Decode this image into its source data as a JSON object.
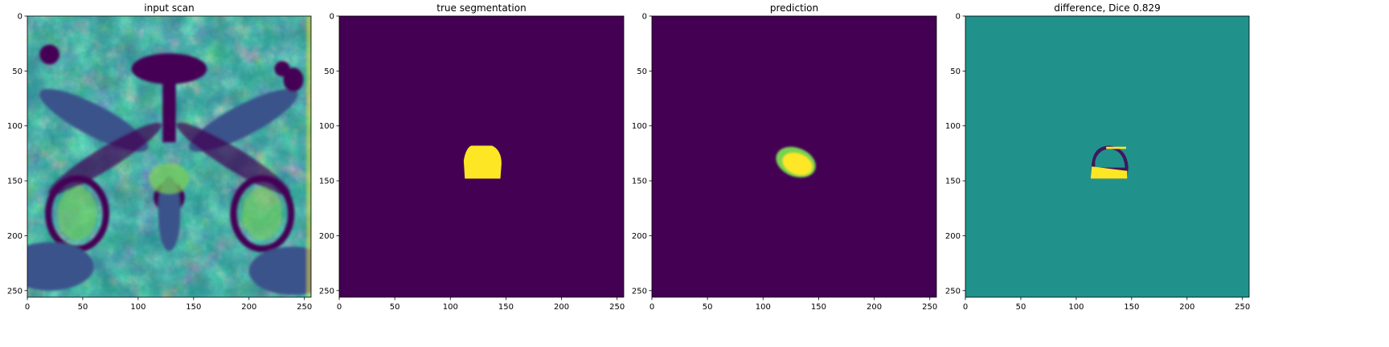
{
  "chart_data": [
    {
      "type": "heatmap",
      "title": "input scan",
      "colormap": "viridis",
      "content": "mri-scan",
      "xlim": [
        0,
        256
      ],
      "ylim": [
        0,
        256
      ],
      "xticks": [
        0,
        50,
        100,
        150,
        200,
        250
      ],
      "yticks": [
        0,
        50,
        100,
        150,
        200,
        250
      ],
      "grid": false
    },
    {
      "type": "heatmap",
      "title": "true segmentation",
      "colormap": "viridis",
      "content": "mask",
      "region": {
        "x_range": [
          112,
          146
        ],
        "y_range": [
          118,
          148
        ]
      },
      "xlim": [
        0,
        256
      ],
      "ylim": [
        0,
        256
      ],
      "xticks": [
        0,
        50,
        100,
        150,
        200,
        250
      ],
      "yticks": [
        0,
        50,
        100,
        150,
        200,
        250
      ],
      "grid": false
    },
    {
      "type": "heatmap",
      "title": "prediction",
      "colormap": "viridis",
      "content": "prediction",
      "region": {
        "x_range": [
          111,
          148
        ],
        "y_range": [
          120,
          146
        ]
      },
      "xlim": [
        0,
        256
      ],
      "ylim": [
        0,
        256
      ],
      "xticks": [
        0,
        50,
        100,
        150,
        200,
        250
      ],
      "yticks": [
        0,
        50,
        100,
        150,
        200,
        250
      ],
      "grid": false
    },
    {
      "type": "heatmap",
      "title": "difference, Dice 0.829",
      "colormap": "viridis",
      "content": "difference",
      "dice": 0.829,
      "xlim": [
        0,
        256
      ],
      "ylim": [
        0,
        256
      ],
      "xticks": [
        0,
        50,
        100,
        150,
        200,
        250
      ],
      "yticks": [
        0,
        50,
        100,
        150,
        200,
        250
      ],
      "grid": false
    }
  ],
  "colors": {
    "viridis_low": "#440154",
    "viridis_mid": "#21918c",
    "viridis_high": "#fde725",
    "viridis_green": "#7ad151",
    "viridis_blue": "#3b528b"
  }
}
